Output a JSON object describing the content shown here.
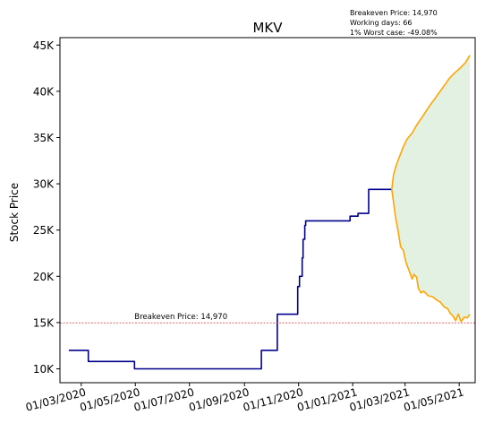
{
  "chart_data": {
    "type": "line",
    "title": "MKV",
    "ylabel": "Stock Price",
    "xlabel": "",
    "ylim": [
      8500,
      45800
    ],
    "xlim": [
      "2020-02-06",
      "2021-05-19"
    ],
    "grid": false,
    "x_ticks": [
      "2020-03-01",
      "2020-05-01",
      "2020-07-01",
      "2020-09-01",
      "2020-11-01",
      "2021-01-01",
      "2021-03-01",
      "2021-05-01"
    ],
    "x_tick_labels": [
      "01/03/2020",
      "01/05/2020",
      "01/07/2020",
      "01/09/2020",
      "01/11/2020",
      "01/01/2021",
      "01/03/2021",
      "01/05/2021"
    ],
    "y_ticks": [
      10000,
      15000,
      20000,
      25000,
      30000,
      35000,
      40000,
      45000
    ],
    "y_tick_labels": [
      "10K",
      "15K",
      "20K",
      "25K",
      "30K",
      "35K",
      "40K",
      "45K"
    ],
    "info_box": [
      "Breakeven Price: 14,970",
      "Working days: 66",
      "1% Worst case: -49.08%"
    ],
    "breakeven": {
      "value": 14970,
      "label": "Breakeven Price: 14,970",
      "color": "#e03030"
    },
    "series": [
      {
        "color": "#00008b",
        "points": [
          [
            "2020-02-16",
            12000
          ],
          [
            "2020-03-09",
            12000
          ],
          [
            "2020-03-09",
            10800
          ],
          [
            "2020-04-30",
            10800
          ],
          [
            "2020-04-30",
            10000
          ],
          [
            "2020-09-20",
            10000
          ],
          [
            "2020-09-20",
            12000
          ],
          [
            "2020-10-08",
            12000
          ],
          [
            "2020-10-08",
            15900
          ],
          [
            "2020-10-31",
            15900
          ],
          [
            "2020-10-31",
            18900
          ],
          [
            "2020-11-02",
            18900
          ],
          [
            "2020-11-02",
            20000
          ],
          [
            "2020-11-05",
            20000
          ],
          [
            "2020-11-05",
            22000
          ],
          [
            "2020-11-06",
            22000
          ],
          [
            "2020-11-06",
            24000
          ],
          [
            "2020-11-08",
            24000
          ],
          [
            "2020-11-08",
            25500
          ],
          [
            "2020-11-09",
            25500
          ],
          [
            "2020-11-09",
            26000
          ],
          [
            "2020-12-29",
            26000
          ],
          [
            "2020-12-29",
            26500
          ],
          [
            "2021-01-07",
            26500
          ],
          [
            "2021-01-07",
            26800
          ],
          [
            "2021-01-19",
            26800
          ],
          [
            "2021-01-19",
            29400
          ],
          [
            "2021-02-14",
            29400
          ]
        ]
      },
      {
        "color": "#ffa500",
        "points": [
          [
            "2021-02-14",
            29400
          ],
          [
            "2021-02-16",
            31000
          ],
          [
            "2021-02-19",
            32000
          ],
          [
            "2021-02-23",
            33000
          ],
          [
            "2021-02-27",
            34000
          ],
          [
            "2021-03-03",
            34800
          ],
          [
            "2021-03-09",
            35500
          ],
          [
            "2021-03-15",
            36500
          ],
          [
            "2021-03-21",
            37300
          ],
          [
            "2021-03-27",
            38200
          ],
          [
            "2021-04-02",
            39000
          ],
          [
            "2021-04-08",
            39800
          ],
          [
            "2021-04-14",
            40600
          ],
          [
            "2021-04-20",
            41400
          ],
          [
            "2021-04-26",
            42000
          ],
          [
            "2021-05-02",
            42500
          ],
          [
            "2021-05-08",
            43100
          ],
          [
            "2021-05-13",
            43900
          ]
        ]
      },
      {
        "color": "#ffa500",
        "points": [
          [
            "2021-02-14",
            29400
          ],
          [
            "2021-02-16",
            28000
          ],
          [
            "2021-02-18",
            26500
          ],
          [
            "2021-02-21",
            25000
          ],
          [
            "2021-02-24",
            23200
          ],
          [
            "2021-02-27",
            22800
          ],
          [
            "2021-03-02",
            21500
          ],
          [
            "2021-03-06",
            20500
          ],
          [
            "2021-03-09",
            19700
          ],
          [
            "2021-03-11",
            20200
          ],
          [
            "2021-03-14",
            19900
          ],
          [
            "2021-03-16",
            18700
          ],
          [
            "2021-03-19",
            18200
          ],
          [
            "2021-03-22",
            18400
          ],
          [
            "2021-03-27",
            17900
          ],
          [
            "2021-04-01",
            17800
          ],
          [
            "2021-04-06",
            17400
          ],
          [
            "2021-04-10",
            17200
          ],
          [
            "2021-04-14",
            16700
          ],
          [
            "2021-04-18",
            16500
          ],
          [
            "2021-04-21",
            16000
          ],
          [
            "2021-04-24",
            15700
          ],
          [
            "2021-04-27",
            15200
          ],
          [
            "2021-04-30",
            15900
          ],
          [
            "2021-05-03",
            15100
          ],
          [
            "2021-05-07",
            15600
          ],
          [
            "2021-05-10",
            15500
          ],
          [
            "2021-05-13",
            15900
          ]
        ]
      }
    ],
    "band": {
      "color": "#d8ecd8",
      "from": "2021-02-14",
      "to": "2021-05-13"
    }
  }
}
